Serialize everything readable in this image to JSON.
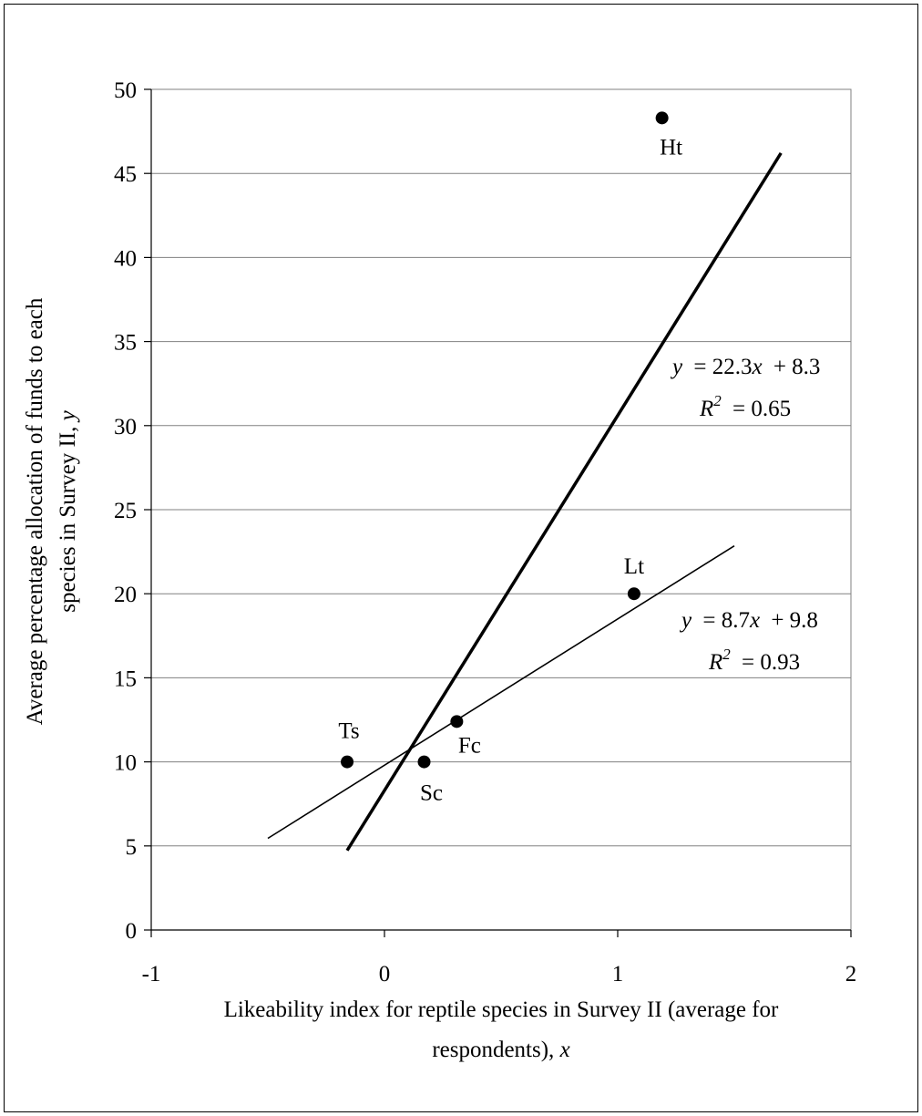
{
  "chart_data": {
    "type": "scatter",
    "xlabel_line1": "Likeability index for reptile species in Survey II (average for",
    "xlabel_line2_prefix": "respondents), ",
    "xlabel_line2_var": "x",
    "ylabel_line1": "Average percentage allocation of funds to each",
    "ylabel_line2_prefix": "species in Survey II, ",
    "ylabel_line2_var": "y",
    "xlim": [
      -1,
      2
    ],
    "ylim": [
      0,
      50
    ],
    "x_ticks": [
      -1,
      0,
      1,
      2
    ],
    "y_ticks": [
      0,
      5,
      10,
      15,
      20,
      25,
      30,
      35,
      40,
      45,
      50
    ],
    "grid": "horizontal",
    "points": [
      {
        "label": "Ts",
        "x": -0.16,
        "y": 10
      },
      {
        "label": "Sc",
        "x": 0.17,
        "y": 10
      },
      {
        "label": "Fc",
        "x": 0.31,
        "y": 12.4
      },
      {
        "label": "Lt",
        "x": 1.07,
        "y": 20
      },
      {
        "label": "Ht",
        "x": 1.19,
        "y": 48.3
      }
    ],
    "series": [
      {
        "slope": 22.3,
        "intercept": 8.3,
        "x_range": [
          -0.16,
          1.7
        ],
        "equation": {
          "y": "y",
          "eq": "= 22.3",
          "x": "x",
          "rest": "+ 8.3"
        },
        "r2": {
          "R": "R",
          "sup": "2",
          "rest": "= 0.65"
        }
      },
      {
        "slope": 8.7,
        "intercept": 9.8,
        "x_range": [
          -0.5,
          1.5
        ],
        "equation": {
          "y": "y",
          "eq": "= 8.7",
          "x": "x",
          "rest": "+ 9.8"
        },
        "r2": {
          "R": "R",
          "sup": "2",
          "rest": "= 0.93"
        }
      }
    ]
  }
}
